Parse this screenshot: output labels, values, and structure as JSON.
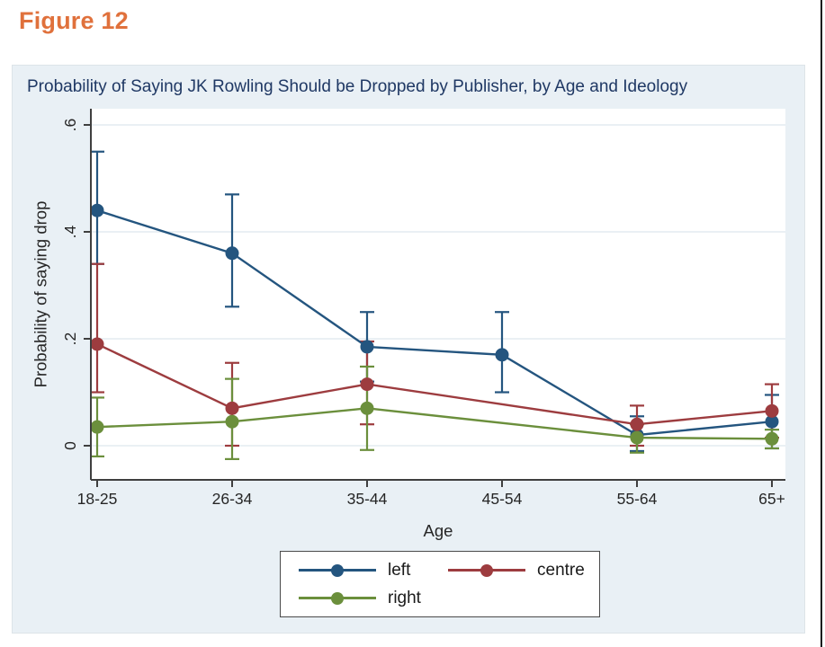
{
  "figure_label": "Figure 12",
  "colors": {
    "figure_label_text": "#e0713c",
    "panel_bg": "#e9f0f5",
    "plot_bg": "#ffffff",
    "grid": "#e3ecf1",
    "axis": "#3f3f3f",
    "tick_text": "#262626",
    "title_text": "#1f3864",
    "series_left": "#24557f",
    "series_centre": "#9d3c3f",
    "series_right": "#6b8f3c"
  },
  "chart_data": {
    "type": "line",
    "title": "Probability of Saying JK Rowling Should be Dropped by Publisher, by Age and Ideology",
    "xlabel": "Age",
    "ylabel": "Probability of saying drop",
    "categories": [
      "18-25",
      "26-34",
      "35-44",
      "45-54",
      "55-64",
      "65+"
    ],
    "y_ticks": [
      0,
      0.2,
      0.4,
      0.6
    ],
    "y_tick_labels": [
      "0",
      ".2",
      ".4",
      ".6"
    ],
    "ylim": [
      -0.06,
      0.63
    ],
    "grid": true,
    "error_bars": true,
    "legend_position": "bottom",
    "series": [
      {
        "name": "left",
        "color_key": "series_left",
        "values": [
          0.44,
          0.36,
          0.185,
          0.17,
          0.02,
          0.045
        ],
        "ci_low": [
          0.34,
          0.26,
          0.12,
          0.1,
          -0.01,
          -0.005
        ],
        "ci_high": [
          0.55,
          0.47,
          0.25,
          0.25,
          0.055,
          0.095
        ]
      },
      {
        "name": "centre",
        "color_key": "series_centre",
        "values": [
          0.19,
          0.07,
          0.115,
          null,
          0.04,
          0.065
        ],
        "ci_low": [
          0.1,
          0.0,
          0.04,
          null,
          0.0,
          0.015
        ],
        "ci_high": [
          0.34,
          0.155,
          0.195,
          null,
          0.075,
          0.115
        ]
      },
      {
        "name": "right",
        "color_key": "series_right",
        "values": [
          0.035,
          0.045,
          0.07,
          null,
          0.015,
          0.013
        ],
        "ci_low": [
          -0.02,
          -0.025,
          -0.008,
          null,
          -0.013,
          -0.005
        ],
        "ci_high": [
          0.09,
          0.125,
          0.148,
          null,
          0.04,
          0.03
        ]
      }
    ]
  }
}
